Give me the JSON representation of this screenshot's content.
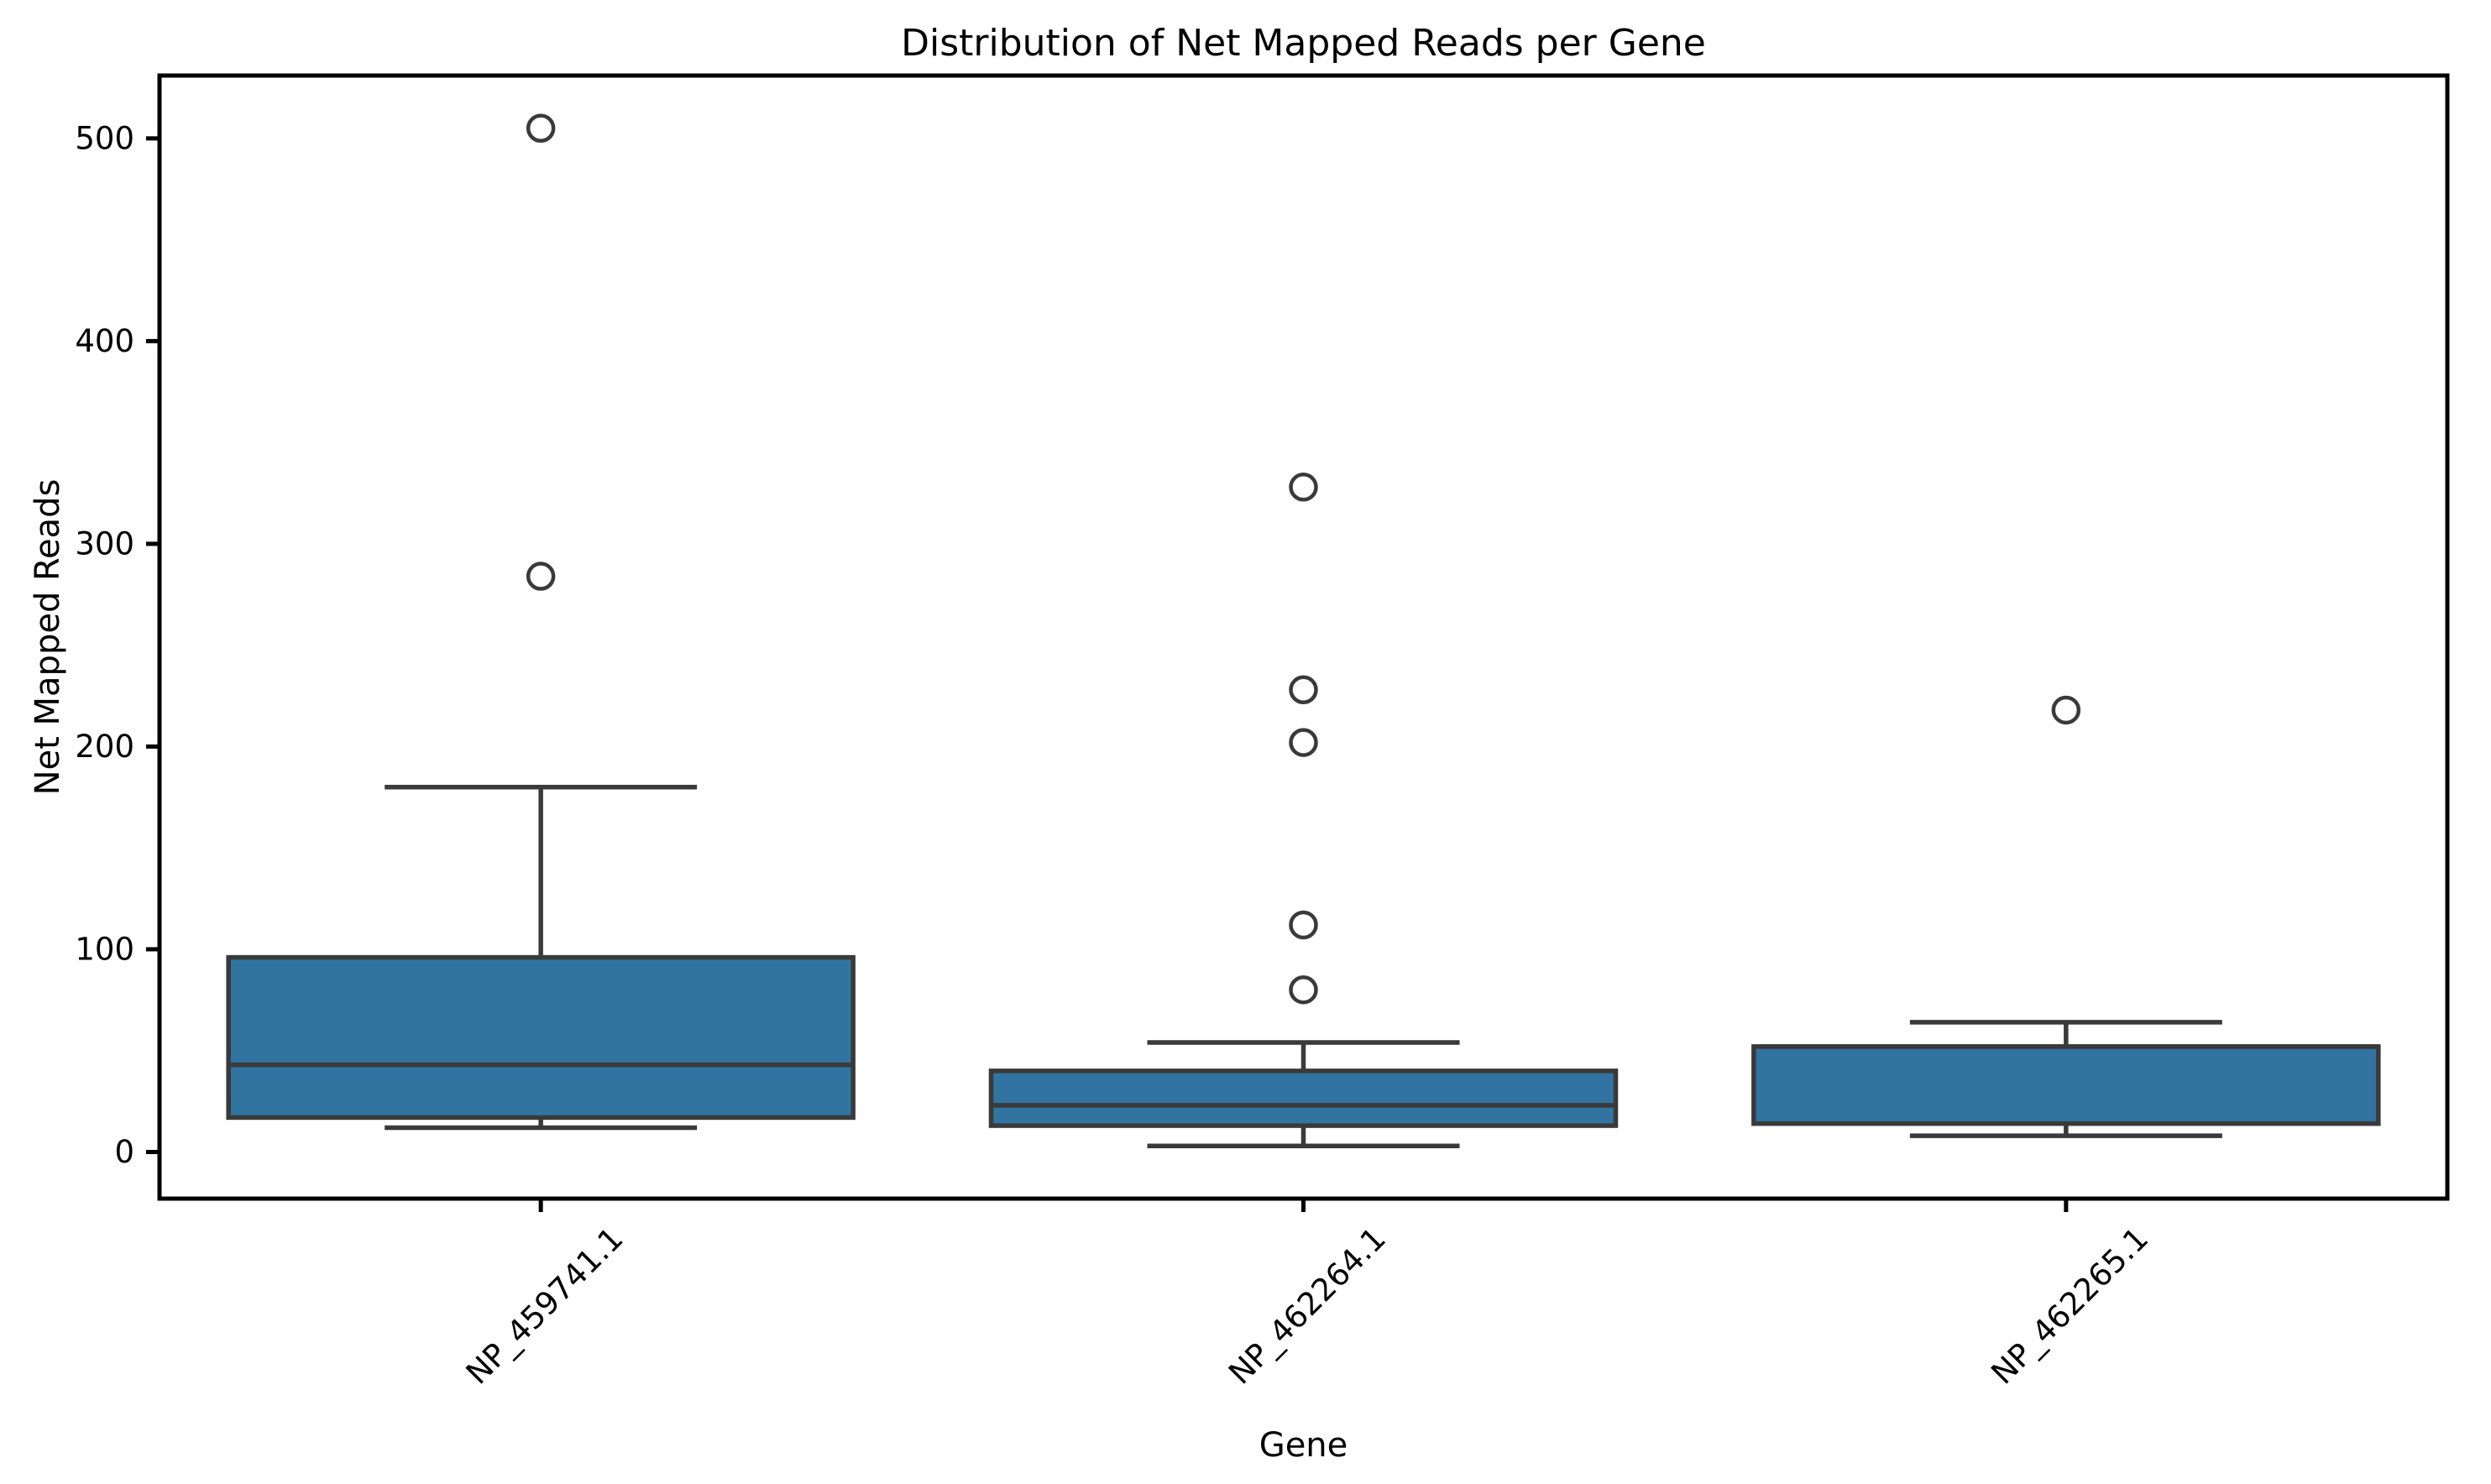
{
  "chart_data": {
    "type": "boxplot",
    "title": "Distribution of Net Mapped Reads per Gene",
    "xlabel": "Gene",
    "ylabel": "Net Mapped Reads",
    "categories": [
      "NP_459741.1",
      "NP_462264.1",
      "NP_462265.1"
    ],
    "yticks": [
      0,
      100,
      200,
      300,
      400,
      500
    ],
    "ylim": [
      -23,
      531
    ],
    "grid": false,
    "legend_position": "none",
    "colors": {
      "box_fill": "#3274a1",
      "box_line": "#3a3a3a",
      "axis": "#000000",
      "background": "#ffffff"
    },
    "boxes": [
      {
        "category": "NP_459741.1",
        "whisker_low": 12,
        "q1": 17,
        "median": 43,
        "q3": 96,
        "whisker_high": 180,
        "outliers": [
          284,
          505
        ]
      },
      {
        "category": "NP_462264.1",
        "whisker_low": 3,
        "q1": 13,
        "median": 23,
        "q3": 40,
        "whisker_high": 54,
        "outliers": [
          80,
          112,
          202,
          228,
          328
        ]
      },
      {
        "category": "NP_462265.1",
        "whisker_low": 8,
        "q1": 14,
        "median": 52,
        "q3": 52,
        "whisker_high": 64,
        "outliers": [
          218
        ]
      }
    ]
  }
}
